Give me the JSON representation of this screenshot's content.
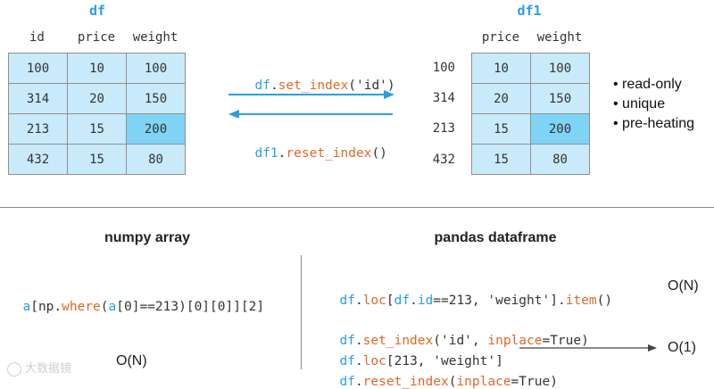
{
  "df_table": {
    "title": "df",
    "columns": [
      "id",
      "price",
      "weight"
    ],
    "rows": [
      [
        "100",
        "10",
        "100"
      ],
      [
        "314",
        "20",
        "150"
      ],
      [
        "213",
        "15",
        "200"
      ],
      [
        "432",
        "15",
        "80"
      ]
    ]
  },
  "df1_table": {
    "title": "df1",
    "columns": [
      "price",
      "weight"
    ],
    "index": [
      "100",
      "314",
      "213",
      "432"
    ],
    "rows": [
      [
        "10",
        "100"
      ],
      [
        "20",
        "150"
      ],
      [
        "15",
        "200"
      ],
      [
        "15",
        "80"
      ]
    ]
  },
  "arrows": {
    "forward": {
      "obj": "df",
      "dot": ".",
      "method": "set_index",
      "args": "('id')"
    },
    "backward": {
      "obj": "df1",
      "dot": ".",
      "method": "reset_index",
      "args": "()"
    }
  },
  "index_properties": [
    "• read-only",
    "• unique",
    "• pre-heating"
  ],
  "numpy": {
    "title": "numpy array",
    "code": {
      "a1": "a",
      "p1": "[",
      "np": "np",
      "dot": ".",
      "where": "where",
      "p2": "(",
      "a2": "a",
      "rest": "[0]==213)[0][0]][2]"
    },
    "complexity": "O(N)"
  },
  "pandas": {
    "title": "pandas dataframe",
    "line1": {
      "df": "df",
      "dot1": ".",
      "loc": "loc",
      "p1": "[",
      "df2": "df",
      "dot2": ".",
      "id": "id",
      "mid": "==213, 'weight'].",
      "item": "item",
      "end": "()"
    },
    "line1_complexity": "O(N)",
    "line2": {
      "df": "df",
      "dot": ".",
      "method": "set_index",
      "a": "('id', ",
      "inplace": "inplace",
      "b": "=True)"
    },
    "line3": {
      "df": "df",
      "dot": ".",
      "method": "loc",
      "rest": "[213, 'weight']"
    },
    "line3_complexity": "O(1)",
    "line4": {
      "df": "df",
      "dot": ".",
      "method": "reset_index",
      "a": "(",
      "inplace": "inplace",
      "b": "=True)"
    }
  },
  "watermark": "大数据镜",
  "colors": {
    "accent_blue": "#2a9fe0",
    "accent_orange": "#e0682a",
    "cell": "#c9eafb",
    "cell_highlight": "#7fd4f5"
  }
}
